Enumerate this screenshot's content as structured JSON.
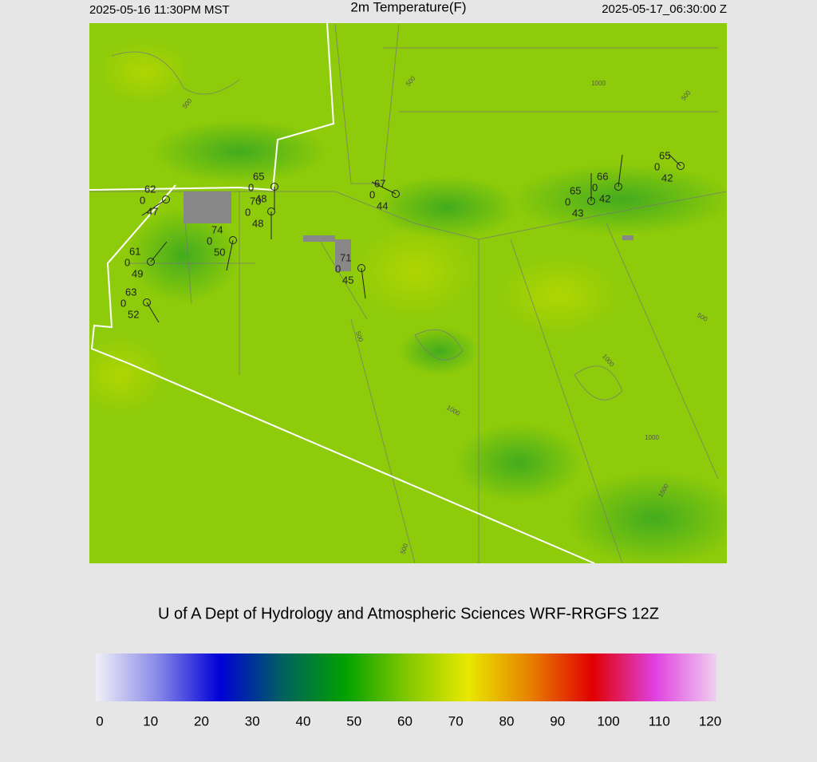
{
  "header": {
    "left": "2025-05-16 11:30PM MST",
    "title": "2m Temperature(F)",
    "right": "2025-05-17_06:30:00 Z"
  },
  "credit": "U of A Dept of Hydrology and Atmospheric Sciences WRF-RRGFS 12Z",
  "colorbar": {
    "ticks": [
      0,
      10,
      20,
      30,
      40,
      50,
      60,
      70,
      80,
      90,
      100,
      110,
      120
    ],
    "colors": [
      "#f0f0f8",
      "#8888e8",
      "#0000d8",
      "#006060",
      "#00a000",
      "#80c800",
      "#e8e800",
      "#e88000",
      "#e00000",
      "#e040e0",
      "#f0d0f0"
    ]
  },
  "stations": [
    {
      "temperature": "62",
      "pressure": "0",
      "dewpoint": "47"
    },
    {
      "temperature": "65",
      "pressure": "0",
      "dewpoint": "48"
    },
    {
      "temperature": "70",
      "pressure": "0",
      "dewpoint": "48"
    },
    {
      "temperature": "74",
      "pressure": "0",
      "dewpoint": "50"
    },
    {
      "temperature": "61",
      "pressure": "0",
      "dewpoint": "49"
    },
    {
      "temperature": "63",
      "pressure": "0",
      "dewpoint": "52"
    },
    {
      "temperature": "71",
      "pressure": "0",
      "dewpoint": "45"
    },
    {
      "temperature": "67",
      "pressure": "0",
      "dewpoint": "44"
    },
    {
      "temperature": "65",
      "pressure": "0",
      "dewpoint": "43"
    },
    {
      "temperature": "66",
      "pressure": "0",
      "dewpoint": "42"
    },
    {
      "temperature": "65",
      "pressure": "0",
      "dewpoint": "42"
    }
  ],
  "contour_labels": [
    "500",
    "500",
    "1000",
    "500",
    "500",
    "1000",
    "1000",
    "1000",
    "1500",
    "500",
    "500"
  ]
}
